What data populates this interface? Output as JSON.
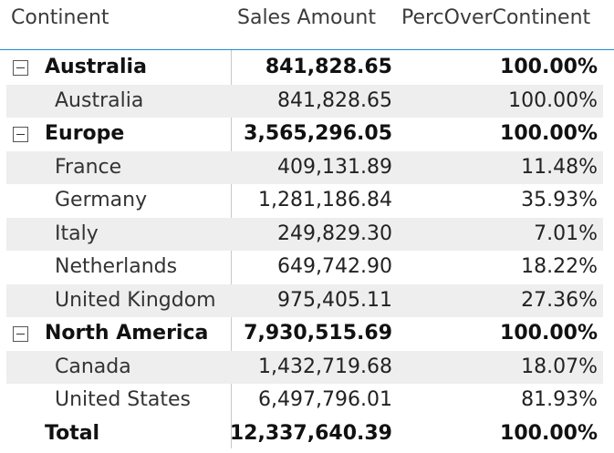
{
  "columns": {
    "continent": "Continent",
    "sales": "Sales Amount",
    "perc": "PercOverContinent"
  },
  "rows": [
    {
      "name": "Australia",
      "sales": "841,828.65",
      "perc": "100.00%"
    },
    {
      "name": "Australia",
      "sales": "841,828.65",
      "perc": "100.00%"
    },
    {
      "name": "Europe",
      "sales": "3,565,296.05",
      "perc": "100.00%"
    },
    {
      "name": "France",
      "sales": "409,131.89",
      "perc": "11.48%"
    },
    {
      "name": "Germany",
      "sales": "1,281,186.84",
      "perc": "35.93%"
    },
    {
      "name": "Italy",
      "sales": "249,829.30",
      "perc": "7.01%"
    },
    {
      "name": "Netherlands",
      "sales": "649,742.90",
      "perc": "18.22%"
    },
    {
      "name": "United Kingdom",
      "sales": "975,405.11",
      "perc": "27.36%"
    },
    {
      "name": "North America",
      "sales": "7,930,515.69",
      "perc": "100.00%"
    },
    {
      "name": "Canada",
      "sales": "1,432,719.68",
      "perc": "18.07%"
    },
    {
      "name": "United States",
      "sales": "6,497,796.01",
      "perc": "81.93%"
    }
  ],
  "total": {
    "name": "Total",
    "sales": "12,337,640.39",
    "perc": "100.00%"
  },
  "colors": {
    "header_border": "#1f8fd1",
    "banded_row": "#eeeeee"
  }
}
